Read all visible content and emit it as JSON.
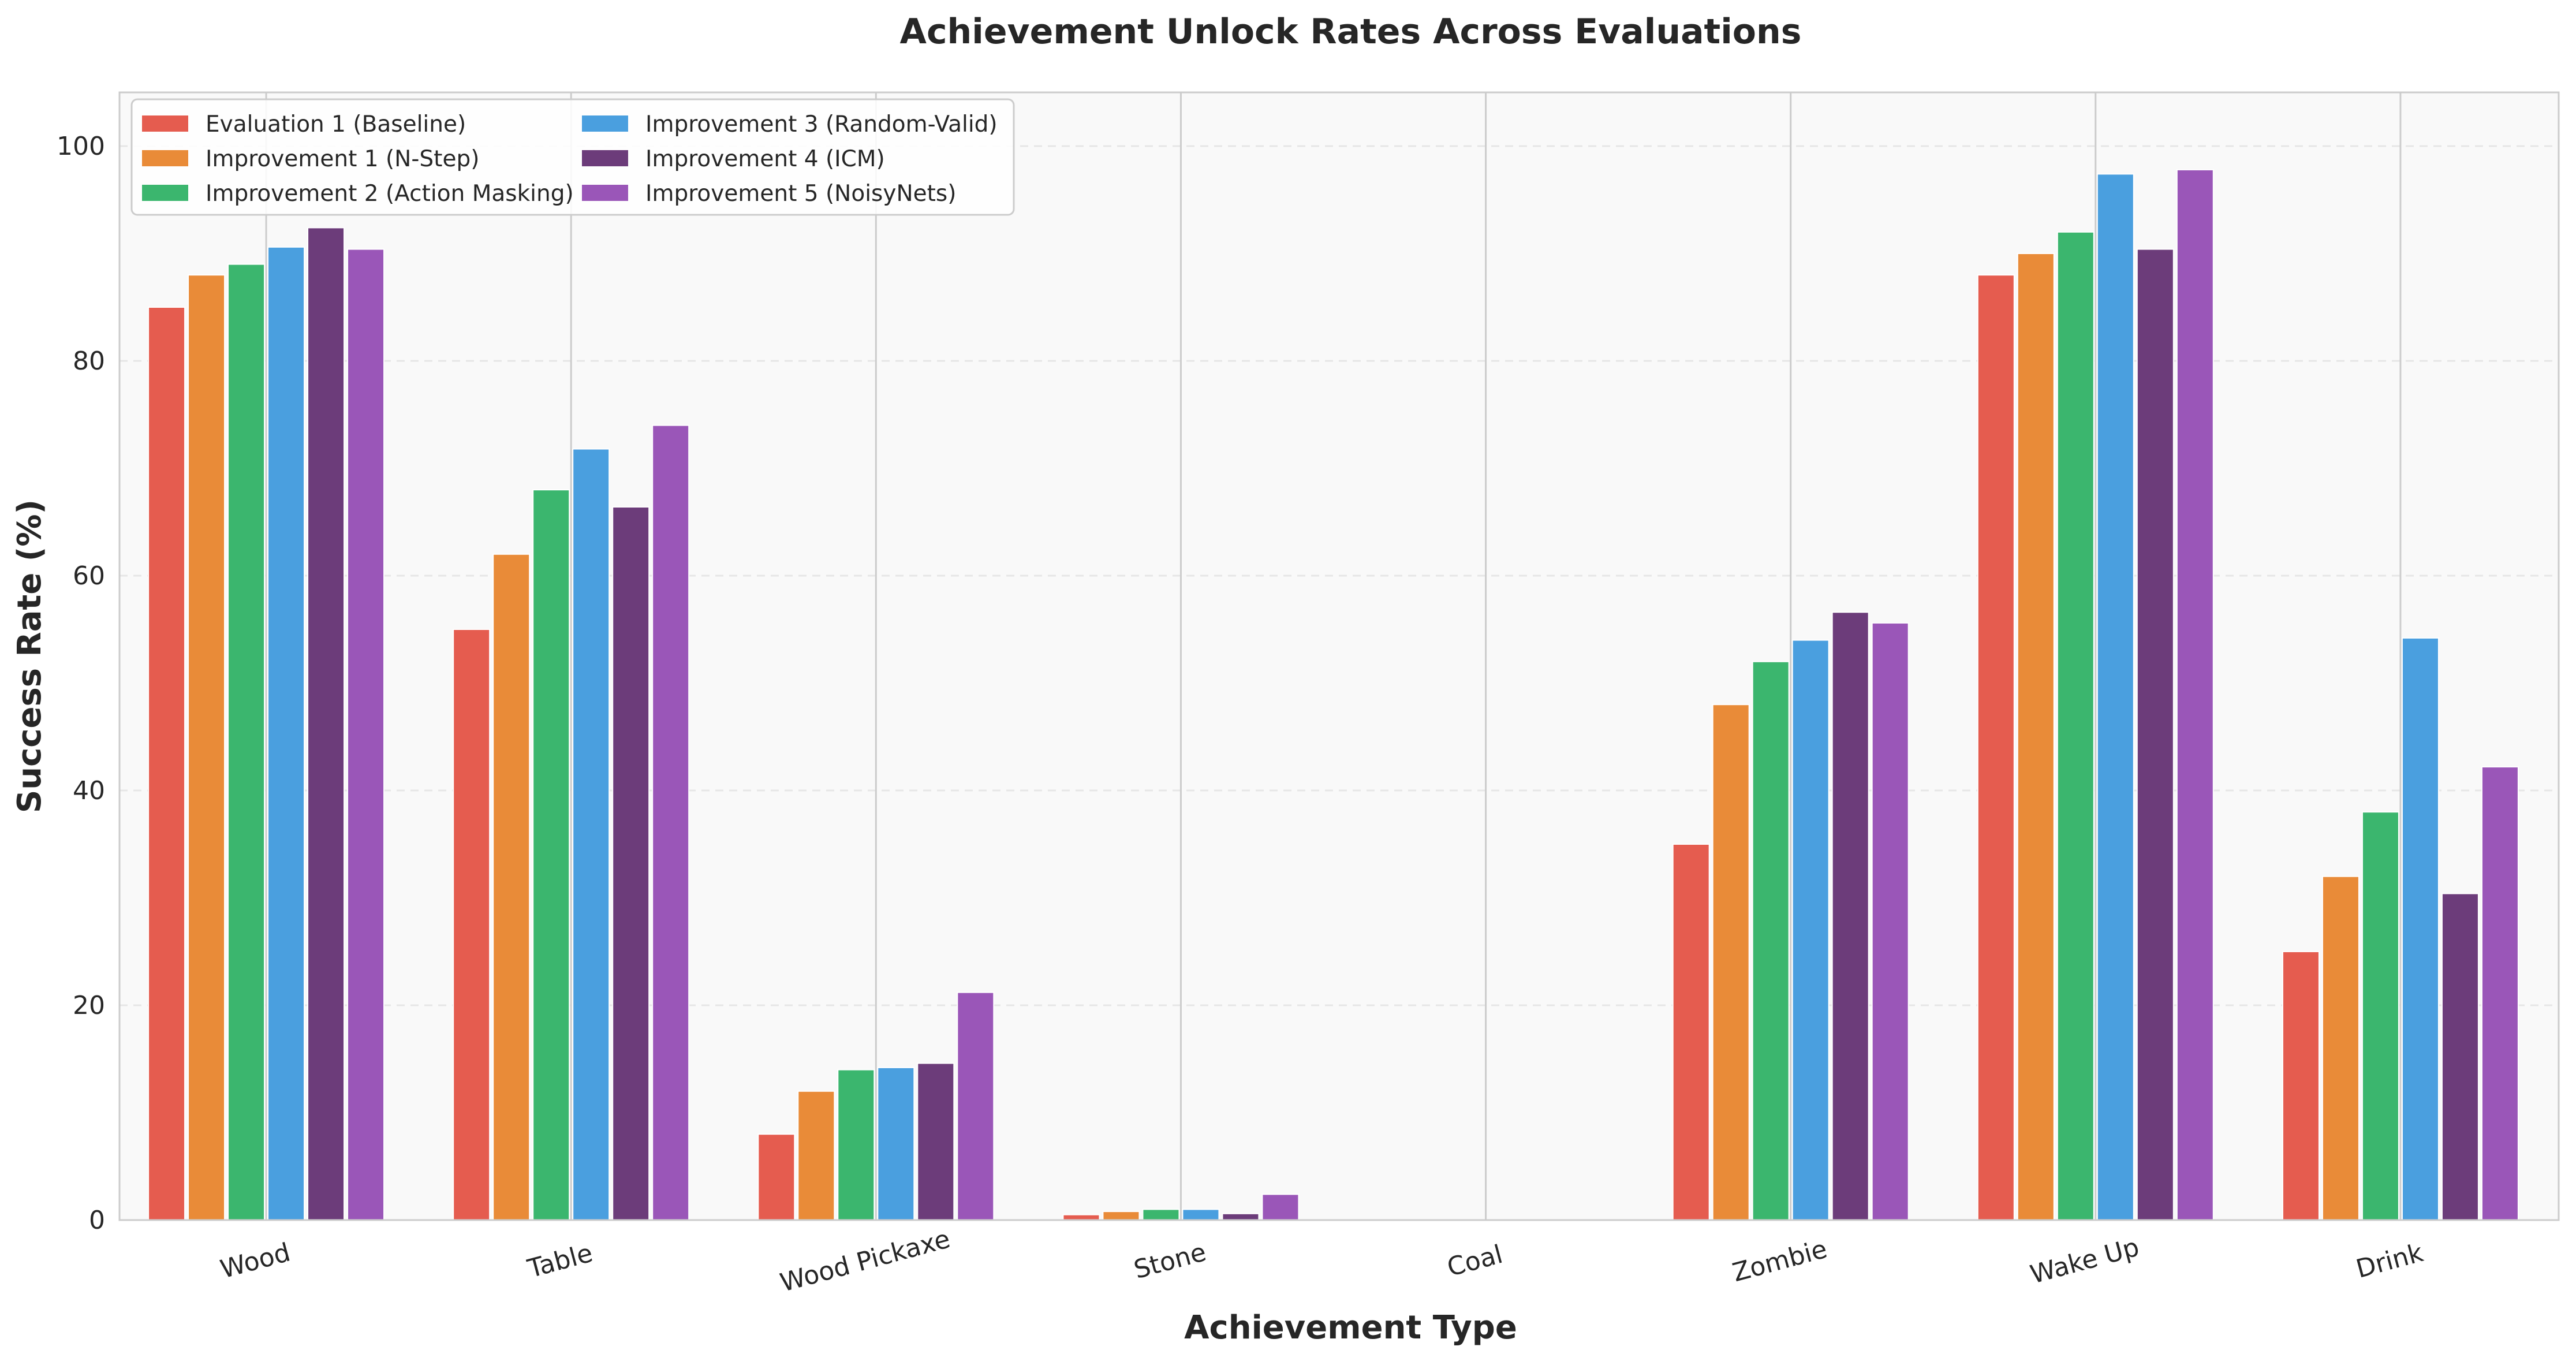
{
  "chart_data": {
    "type": "bar",
    "title": "Achievement Unlock Rates Across Evaluations",
    "xlabel": "Achievement Type",
    "ylabel": "Success Rate (%)",
    "ylim": [
      0,
      105
    ],
    "yticks": [
      0,
      20,
      40,
      60,
      80,
      100
    ],
    "grid": true,
    "legend_position": "top-left",
    "categories": [
      "Wood",
      "Table",
      "Wood Pickaxe",
      "Stone",
      "Coal",
      "Zombie",
      "Wake Up",
      "Drink"
    ],
    "series": [
      {
        "name": "Evaluation 1 (Baseline)",
        "color": "#e55c4f",
        "values": [
          85,
          55,
          8,
          0.5,
          0,
          35,
          88,
          25
        ]
      },
      {
        "name": "Improvement 1 (N-Step)",
        "color": "#e98b38",
        "values": [
          88,
          62,
          12,
          0.8,
          0,
          48,
          90,
          32
        ]
      },
      {
        "name": "Improvement 2 (Action Masking)",
        "color": "#3bb66e",
        "values": [
          89,
          68,
          14,
          1.0,
          0,
          52,
          92,
          38
        ]
      },
      {
        "name": "Improvement 3 (Random-Valid)",
        "color": "#4a9fdf",
        "values": [
          90.6,
          71.8,
          14.2,
          1.0,
          0,
          54,
          97.4,
          54.2
        ]
      },
      {
        "name": "Improvement 4 (ICM)",
        "color": "#6c3c7a",
        "values": [
          92.4,
          66.4,
          14.6,
          0.6,
          0,
          56.6,
          90.4,
          30.4
        ]
      },
      {
        "name": "Improvement 5 (NoisyNets)",
        "color": "#9a56b8",
        "values": [
          90.4,
          74,
          21.2,
          2.4,
          0,
          55.6,
          97.8,
          42.2
        ]
      }
    ]
  }
}
